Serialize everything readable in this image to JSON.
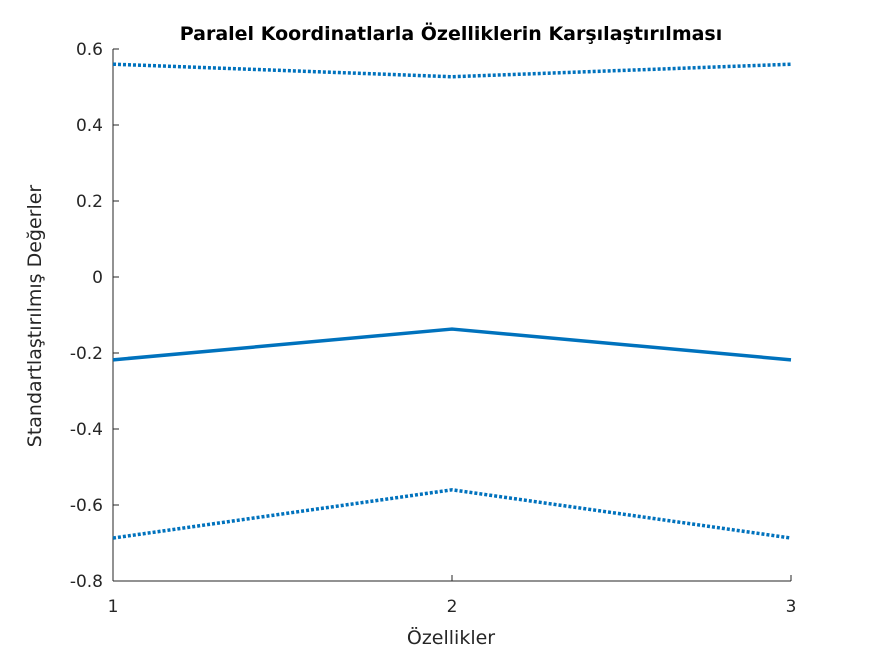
{
  "chart_data": {
    "type": "line",
    "title": "Paralel Koordinatlarla Özelliklerin Karşılaştırılması",
    "xlabel": "Özellikler",
    "ylabel": "Standartlaştırılmış Değerler",
    "categories": [
      "1",
      "2",
      "3"
    ],
    "x": [
      1,
      2,
      3
    ],
    "xlim": [
      1,
      3
    ],
    "ylim": [
      -0.8,
      0.6
    ],
    "yticks": [
      -0.8,
      -0.6,
      -0.4,
      -0.2,
      0,
      0.2,
      0.4,
      0.6
    ],
    "ytick_labels": [
      "-0.8",
      "-0.6",
      "-0.4",
      "-0.2",
      "0",
      "0.2",
      "0.4",
      "0.6"
    ],
    "grid": false,
    "legend": "none",
    "series": [
      {
        "style": "dotted",
        "values": [
          0.56,
          0.527,
          0.56
        ]
      },
      {
        "style": "solid",
        "values": [
          -0.218,
          -0.137,
          -0.218
        ]
      },
      {
        "style": "dotted",
        "values": [
          -0.687,
          -0.56,
          -0.687
        ]
      }
    ],
    "line_color": "#0072BD",
    "axis_color": "#262626"
  }
}
